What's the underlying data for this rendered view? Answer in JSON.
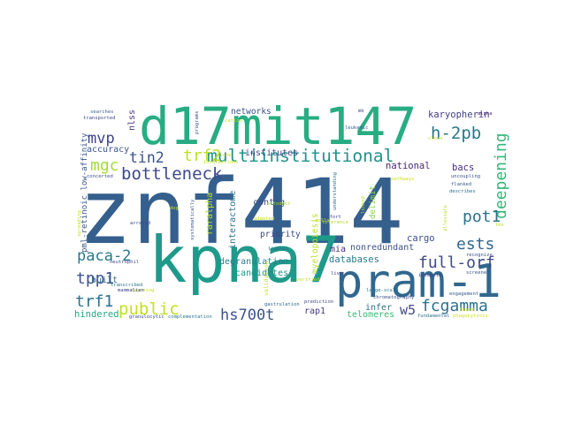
{
  "words": [
    {
      "text": "znf414",
      "color": "#355f8d"
    },
    {
      "text": "d17mit147",
      "color": "#27ad81"
    },
    {
      "text": "kpna7",
      "color": "#1f9a8a"
    },
    {
      "text": "pram-1",
      "color": "#31678e"
    },
    {
      "text": "multiinstitutional",
      "color": "#20928c"
    },
    {
      "text": "bottleneck",
      "color": "#3e4989"
    },
    {
      "text": "trf2",
      "color": "#bddf26"
    },
    {
      "text": "tin2",
      "color": "#3b528b"
    },
    {
      "text": "mvp",
      "color": "#404387"
    },
    {
      "text": "mgc",
      "color": "#a5db36"
    },
    {
      "text": "h-2pb",
      "color": "#2a788e"
    },
    {
      "text": "deepening",
      "color": "#35b779"
    },
    {
      "text": "pot1",
      "color": "#2d708e"
    },
    {
      "text": "ests",
      "color": "#31678e"
    },
    {
      "text": "full-orf",
      "color": "#3e4989"
    },
    {
      "text": "paca-2",
      "color": "#2a788e"
    },
    {
      "text": "tpp1",
      "color": "#3b528b"
    },
    {
      "text": "trf1",
      "color": "#2c728e"
    },
    {
      "text": "public",
      "color": "#c2df23"
    },
    {
      "text": "hs700t",
      "color": "#3b528b"
    },
    {
      "text": "fcgamma",
      "color": "#2c728e"
    },
    {
      "text": "w5",
      "color": "#3f4889"
    },
    {
      "text": "networks",
      "color": "#3a548c"
    },
    {
      "text": "institutes",
      "color": "#404688"
    },
    {
      "text": "karyopherin",
      "color": "#433e85"
    },
    {
      "text": "national",
      "color": "#482576"
    },
    {
      "text": "bacs",
      "color": "#472d7b"
    },
    {
      "text": "contig",
      "color": "#3e4a89"
    },
    {
      "text": "degranulation",
      "color": "#26828e"
    },
    {
      "text": "priority",
      "color": "#3f4788"
    },
    {
      "text": "mia",
      "color": "#472f7d"
    },
    {
      "text": "cargo",
      "color": "#3c508b"
    },
    {
      "text": "nonredundant",
      "color": "#3b528b"
    },
    {
      "text": "candidates",
      "color": "#21918c"
    },
    {
      "text": "databases",
      "color": "#2a788e"
    },
    {
      "text": "telomeres",
      "color": "#3aba76"
    },
    {
      "text": "infer",
      "color": "#2c728e"
    },
    {
      "text": "rap1",
      "color": "#453781"
    },
    {
      "text": "hindered",
      "color": "#22a884"
    },
    {
      "text": "built",
      "color": "#2e6e8e"
    },
    {
      "text": "accuracy",
      "color": "#39558c"
    },
    {
      "text": "nlss",
      "color": "#46327e"
    },
    {
      "text": "raralpha",
      "color": "#b5de2b"
    },
    {
      "text": "interactome",
      "color": "#2a788e"
    },
    {
      "text": "myelopoiesis",
      "color": "#b8de29"
    },
    {
      "text": "delimit",
      "color": "#84d44b"
    },
    {
      "text": "pml-retinoic low-affinity",
      "color": "#39568c"
    },
    {
      "text": "validation",
      "color": "#c0df25"
    },
    {
      "text": "granulocytic",
      "color": "#3e4a89"
    },
    {
      "text": "complementation",
      "color": "#2a788e"
    },
    {
      "text": "gastrulation",
      "color": "#31688e"
    },
    {
      "text": "fundamental",
      "color": "#2e6e8e"
    },
    {
      "text": "transported",
      "color": "#3e4989"
    },
    {
      "text": "searches",
      "color": "#375a8c"
    },
    {
      "text": "leukemic",
      "color": "#355f8d"
    },
    {
      "text": "spanning",
      "color": "#c2df23"
    },
    {
      "text": "transcribed",
      "color": "#2a778e"
    },
    {
      "text": "mammalian",
      "color": "#404387"
    },
    {
      "text": "neutrophil",
      "color": "#3f4889"
    },
    {
      "text": "ligases",
      "color": "#2f6b8e"
    },
    {
      "text": "concerted",
      "color": "#3b528b"
    },
    {
      "text": "arrayed",
      "color": "#3e4989"
    },
    {
      "text": "screened",
      "color": "#3b528b"
    },
    {
      "text": "engagement",
      "color": "#365c8d"
    },
    {
      "text": "recognize",
      "color": "#3b528b"
    },
    {
      "text": "flanked",
      "color": "#365c8d"
    },
    {
      "text": "describes",
      "color": "#2d708e"
    },
    {
      "text": "uncoupling",
      "color": "#3b528b"
    },
    {
      "text": "integrin",
      "color": "#433d84"
    },
    {
      "text": "chromatography",
      "color": "#3b528b"
    },
    {
      "text": "large-scale",
      "color": "#2a788e"
    },
    {
      "text": "prediction",
      "color": "#3e4989"
    },
    {
      "text": "live",
      "color": "#3f4889"
    },
    {
      "text": "alpha",
      "color": "#482979"
    },
    {
      "text": "programs",
      "color": "#3b528b"
    },
    {
      "text": "understanding",
      "color": "#2f6c8e"
    },
    {
      "text": "effort",
      "color": "#3e4a89"
    },
    {
      "text": "systematically",
      "color": "#3b528b"
    },
    {
      "text": "octodecr",
      "color": "#a2da37"
    },
    {
      "text": "verified",
      "color": "#b8de29"
    },
    {
      "text": "interactions",
      "color": "#c5e021"
    },
    {
      "text": "adapted",
      "color": "#c5e021"
    },
    {
      "text": "niche",
      "color": "#c0df25"
    },
    {
      "text": "spreading",
      "color": "#c2df23"
    },
    {
      "text": "tolerance",
      "color": "#b8de29"
    },
    {
      "text": "linked",
      "color": "#b8de29"
    },
    {
      "text": "clone",
      "color": "#c8e020"
    },
    {
      "text": "phagocytosis",
      "color": "#d0e11c"
    },
    {
      "text": "based",
      "color": "#d0e11c"
    },
    {
      "text": "pathways",
      "color": "#d0e11c"
    },
    {
      "text": "alleviate",
      "color": "#b8de29"
    },
    {
      "text": "dog",
      "color": "#c8e020"
    },
    {
      "text": "cells",
      "color": "#c8e020"
    },
    {
      "text": "mb",
      "color": "#404688"
    },
    {
      "text": "cation",
      "color": "#c2df23"
    },
    {
      "text": "tms",
      "color": "#c2df23"
    }
  ]
}
